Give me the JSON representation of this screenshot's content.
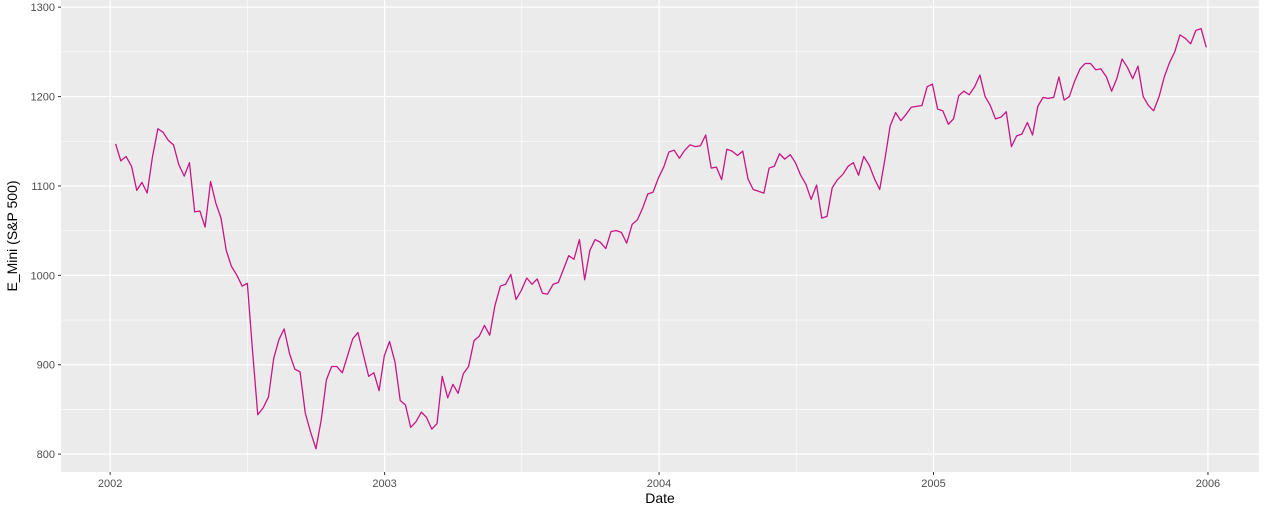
{
  "chart_data": {
    "type": "line",
    "x_label": "Date",
    "y_label": "E_Mini (S&P 500)",
    "xlim": [
      2001.821,
      2006.186
    ],
    "ylim": [
      780,
      1308
    ],
    "xticks": [
      2002,
      2003,
      2004,
      2005,
      2006
    ],
    "yticks": [
      800,
      900,
      1000,
      1100,
      1200,
      1300
    ],
    "grid": true,
    "x": [
      2002.02,
      2002.039,
      2002.058,
      2002.078,
      2002.097,
      2002.116,
      2002.135,
      2002.154,
      2002.174,
      2002.193,
      2002.212,
      2002.231,
      2002.25,
      2002.27,
      2002.289,
      2002.308,
      2002.327,
      2002.346,
      2002.366,
      2002.385,
      2002.404,
      2002.423,
      2002.442,
      2002.462,
      2002.481,
      2002.5,
      2002.519,
      2002.538,
      2002.558,
      2002.577,
      2002.596,
      2002.615,
      2002.634,
      2002.654,
      2002.673,
      2002.692,
      2002.711,
      2002.73,
      2002.75,
      2002.769,
      2002.788,
      2002.807,
      2002.826,
      2002.846,
      2002.865,
      2002.884,
      2002.903,
      2002.922,
      2002.942,
      2002.961,
      2002.98,
      2002.999,
      2003.018,
      2003.038,
      2003.057,
      2003.076,
      2003.095,
      2003.114,
      2003.134,
      2003.153,
      2003.172,
      2003.191,
      2003.21,
      2003.23,
      2003.249,
      2003.268,
      2003.287,
      2003.306,
      2003.326,
      2003.345,
      2003.364,
      2003.383,
      2003.402,
      2003.422,
      2003.441,
      2003.46,
      2003.479,
      2003.498,
      2003.518,
      2003.537,
      2003.556,
      2003.575,
      2003.594,
      2003.614,
      2003.633,
      2003.652,
      2003.671,
      2003.69,
      2003.71,
      2003.729,
      2003.748,
      2003.767,
      2003.786,
      2003.806,
      2003.825,
      2003.844,
      2003.863,
      2003.882,
      2003.902,
      2003.921,
      2003.94,
      2003.959,
      2003.978,
      2003.998,
      2004.017,
      2004.036,
      2004.055,
      2004.074,
      2004.094,
      2004.113,
      2004.132,
      2004.151,
      2004.17,
      2004.19,
      2004.209,
      2004.228,
      2004.247,
      2004.266,
      2004.286,
      2004.305,
      2004.324,
      2004.343,
      2004.362,
      2004.382,
      2004.401,
      2004.42,
      2004.439,
      2004.458,
      2004.478,
      2004.497,
      2004.516,
      2004.535,
      2004.554,
      2004.574,
      2004.593,
      2004.612,
      2004.631,
      2004.65,
      2004.67,
      2004.689,
      2004.708,
      2004.727,
      2004.746,
      2004.766,
      2004.785,
      2004.804,
      2004.823,
      2004.842,
      2004.862,
      2004.881,
      2004.9,
      2004.919,
      2004.938,
      2004.958,
      2004.977,
      2004.996,
      2005.015,
      2005.034,
      2005.054,
      2005.073,
      2005.092,
      2005.111,
      2005.13,
      2005.15,
      2005.169,
      2005.188,
      2005.207,
      2005.226,
      2005.246,
      2005.265,
      2005.284,
      2005.303,
      2005.322,
      2005.342,
      2005.361,
      2005.38,
      2005.399,
      2005.418,
      2005.438,
      2005.457,
      2005.476,
      2005.495,
      2005.514,
      2005.534,
      2005.553,
      2005.572,
      2005.591,
      2005.61,
      2005.63,
      2005.649,
      2005.668,
      2005.687,
      2005.706,
      2005.726,
      2005.745,
      2005.764,
      2005.783,
      2005.802,
      2005.822,
      2005.841,
      2005.86,
      2005.879,
      2005.898,
      2005.918,
      2005.937,
      2005.956,
      2005.975,
      2005.994
    ],
    "series": [
      {
        "color": "#c71585",
        "values": [
          1147,
          1128,
          1133,
          1122,
          1095,
          1104,
          1092,
          1132,
          1164,
          1160,
          1151,
          1146,
          1124,
          1111,
          1126,
          1071,
          1072,
          1054,
          1105,
          1081,
          1064,
          1028,
          1010,
          1000,
          988,
          991,
          915,
          844,
          852,
          864,
          907,
          928,
          940,
          912,
          895,
          892,
          846,
          825,
          806,
          838,
          883,
          898,
          898,
          891,
          910,
          929,
          936,
          912,
          887,
          891,
          871,
          910,
          926,
          903,
          860,
          855,
          830,
          836,
          847,
          841,
          828,
          834,
          887,
          863,
          878,
          868,
          890,
          898,
          927,
          932,
          944,
          933,
          966,
          988,
          990,
          1001,
          973,
          983,
          997,
          990,
          996,
          980,
          979,
          990,
          992,
          1007,
          1022,
          1018,
          1040,
          995,
          1028,
          1040,
          1037,
          1030,
          1049,
          1050,
          1048,
          1036,
          1057,
          1062,
          1075,
          1091,
          1093,
          1109,
          1121,
          1138,
          1140,
          1131,
          1140,
          1146,
          1144,
          1145,
          1157,
          1120,
          1121,
          1107,
          1141,
          1139,
          1134,
          1139,
          1108,
          1096,
          1094,
          1092,
          1120,
          1122,
          1136,
          1130,
          1135,
          1126,
          1112,
          1102,
          1085,
          1101,
          1064,
          1066,
          1098,
          1107,
          1113,
          1122,
          1126,
          1112,
          1133,
          1123,
          1108,
          1096,
          1130,
          1167,
          1182,
          1173,
          1180,
          1188,
          1189,
          1190,
          1211,
          1214,
          1186,
          1184,
          1169,
          1175,
          1201,
          1206,
          1202,
          1211,
          1224,
          1200,
          1190,
          1175,
          1177,
          1183,
          1144,
          1156,
          1158,
          1171,
          1157,
          1189,
          1199,
          1198,
          1199,
          1222,
          1196,
          1200,
          1217,
          1231,
          1237,
          1237,
          1230,
          1231,
          1222,
          1206,
          1220,
          1242,
          1233,
          1220,
          1234,
          1200,
          1190,
          1184,
          1200,
          1222,
          1238,
          1250,
          1269,
          1265,
          1259,
          1274,
          1276,
          1255
        ]
      }
    ]
  }
}
